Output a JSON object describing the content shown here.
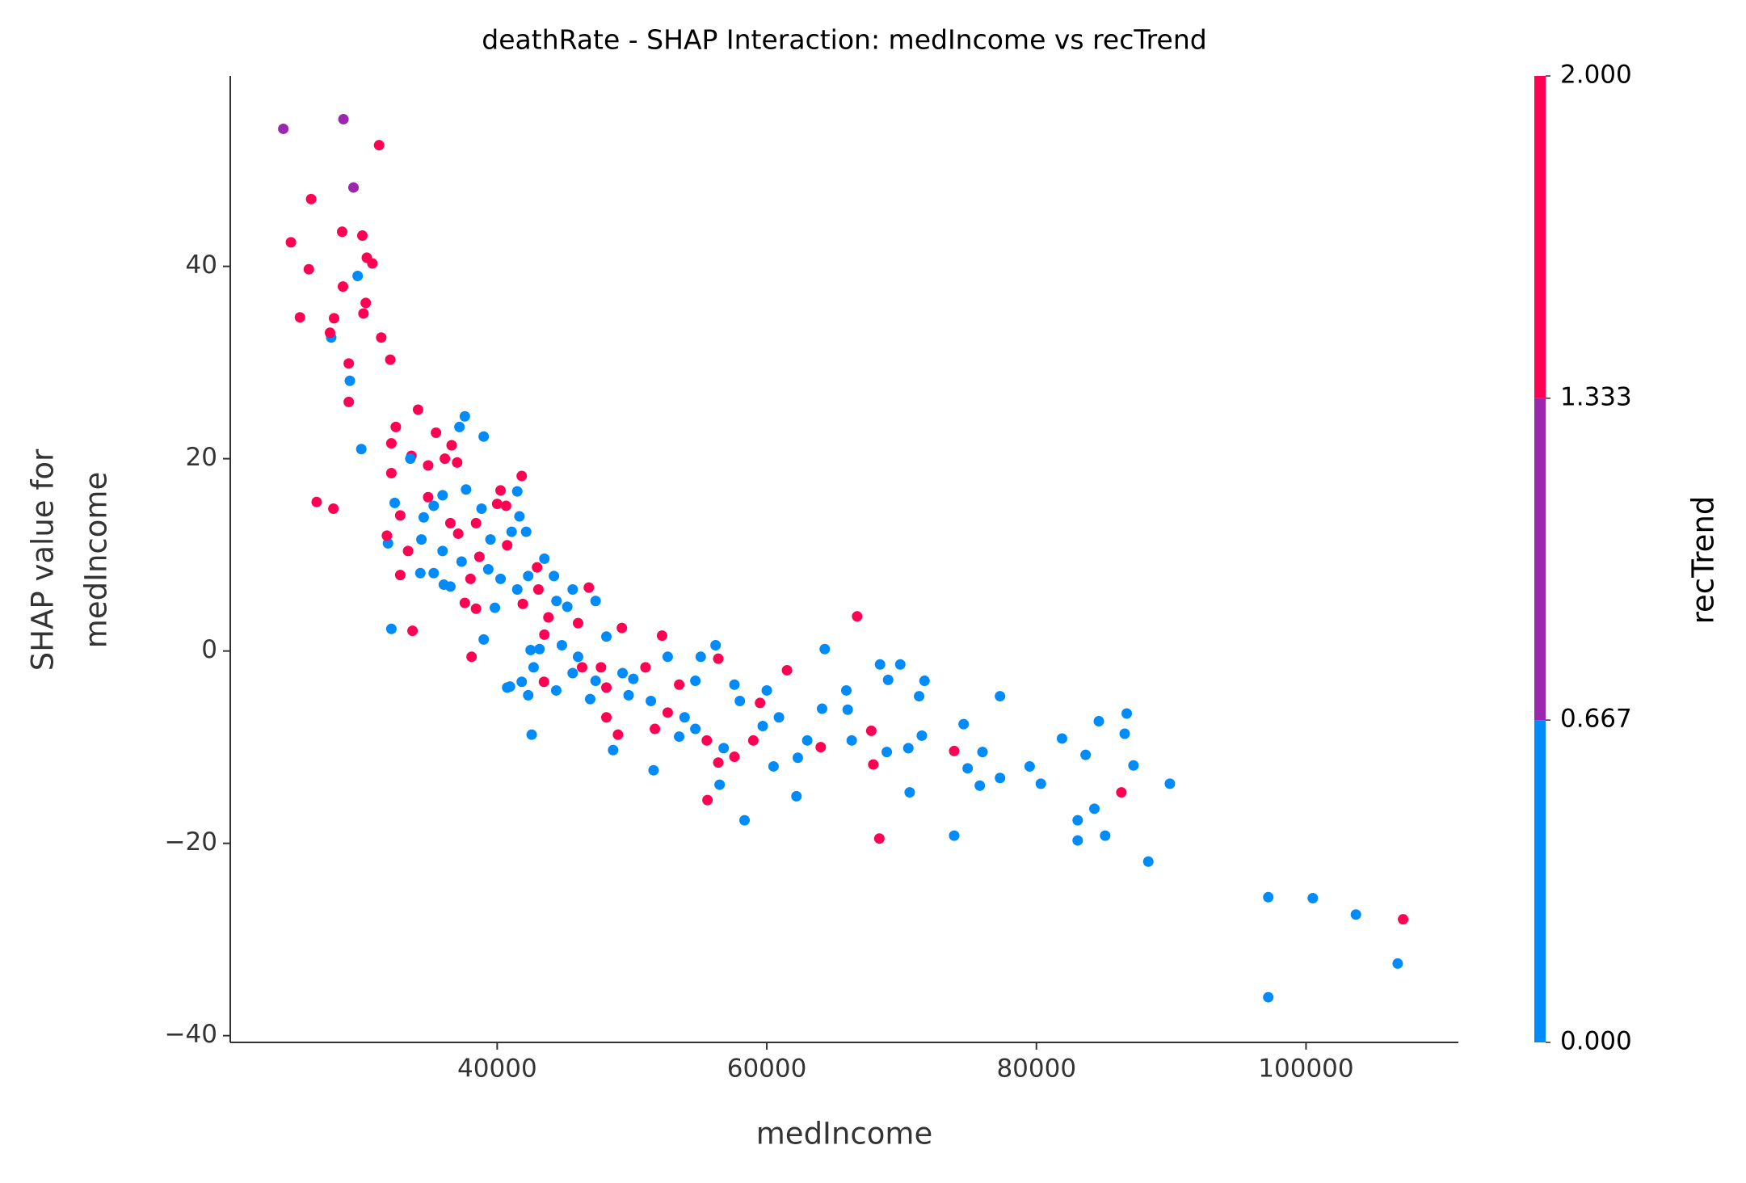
{
  "chart_data": {
    "type": "scatter",
    "title": "deathRate - SHAP Interaction: medIncome vs recTrend",
    "xlabel": "medIncome",
    "ylabel": [
      "SHAP value for",
      "medIncome"
    ],
    "xlim": [
      20200,
      111300
    ],
    "ylim": [
      -40.7,
      59.8
    ],
    "xticks": [
      40000,
      60000,
      80000,
      100000
    ],
    "yticks": [
      {
        "value": -40,
        "label": "−40"
      },
      {
        "value": -20,
        "label": "−20"
      },
      0,
      20,
      40
    ],
    "colorbar": {
      "label": "recTrend",
      "lim": [
        0,
        2
      ],
      "colors": [
        "#008bfb",
        "#9b27b0",
        "#ff0052"
      ],
      "ticks": [
        {
          "value": 0,
          "label": "0.000"
        },
        {
          "value": 0.667,
          "label": "0.667"
        },
        {
          "value": 1.333,
          "label": "1.333"
        },
        {
          "value": 2,
          "label": "2.000"
        }
      ]
    },
    "x": [
      24133,
      28596,
      29340,
      31240,
      24700,
      26200,
      26030,
      25370,
      27690,
      27600,
      27900,
      28500,
      28560,
      28990,
      28990,
      29070,
      29650,
      30000,
      30330,
      30740,
      30250,
      30080,
      31400,
      32070,
      29920,
      26610,
      27850,
      32150,
      33720,
      64300,
      66700,
      89900,
      88300,
      97200,
      100500,
      103700,
      107200,
      106800,
      97200,
      68350,
      73900,
      58350,
      55600,
      83060,
      85100,
      86300,
      83060,
      84300,
      84630,
      86700,
      86550,
      87200,
      80330,
      79500,
      81900,
      83650,
      77300,
      75800,
      74900,
      76000,
      73900,
      74600,
      77300,
      70500,
      70600,
      67900,
      67750,
      69900,
      71700,
      71300,
      68400,
      69000,
      71500,
      68900,
      66300,
      64000,
      62300,
      60500,
      62200,
      56500,
      59700,
      63000,
      65900,
      61500,
      64100,
      66000,
      59500,
      49250,
      52230,
      56200,
      56400,
      55100,
      52650,
      51000,
      49300,
      47700,
      46000,
      44800,
      43500,
      43140,
      42700,
      45600,
      48100,
      49750,
      51400,
      52650,
      53900,
      54700,
      55550,
      56800,
      57600,
      46900,
      48100,
      48960,
      48600,
      51600,
      53500,
      51700,
      42300,
      42560,
      40950,
      44380,
      46300,
      47300,
      50100,
      53500,
      54700,
      57600,
      58000,
      60000,
      60900,
      59000,
      56400,
      43800,
      45200,
      46800,
      45600,
      47300,
      48100,
      46000,
      44400,
      43060,
      37600,
      34130,
      39000,
      35460,
      36620,
      37200,
      32480,
      32150,
      33640,
      34880,
      36120,
      37030,
      32150,
      33560,
      41490,
      40250,
      41820,
      35950,
      37690,
      34880,
      32400,
      32810,
      38840,
      40000,
      40660,
      41650,
      42150,
      34550,
      35290,
      36530,
      37110,
      38430,
      39500,
      40740,
      41070,
      31900,
      31820,
      33390,
      34380,
      35950,
      37360,
      38680,
      39340,
      38020,
      36040,
      34300,
      32810,
      35290,
      36530,
      40250,
      41490,
      41900,
      37600,
      38430,
      39830,
      43500,
      44210,
      42960,
      42300,
      39000,
      38100,
      42480,
      40740,
      41820,
      43470
    ],
    "values": [
      54.3,
      55.3,
      48.2,
      52.6,
      42.5,
      47.0,
      39.7,
      34.7,
      32.6,
      33.1,
      34.6,
      43.6,
      37.9,
      29.9,
      25.9,
      28.1,
      39.0,
      43.2,
      40.9,
      40.3,
      36.2,
      35.1,
      32.6,
      30.3,
      21.0,
      15.5,
      14.8,
      2.3,
      2.1,
      0.2,
      3.6,
      -13.8,
      -21.9,
      -25.6,
      -25.7,
      -27.4,
      -27.9,
      -32.5,
      -36.0,
      -19.5,
      -19.2,
      -17.6,
      -15.5,
      -19.7,
      -19.2,
      -14.7,
      -17.6,
      -16.4,
      -7.3,
      -6.5,
      -8.6,
      -11.9,
      -13.8,
      -12.0,
      -9.1,
      -10.8,
      -13.2,
      -14.0,
      -12.2,
      -10.5,
      -10.4,
      -7.6,
      -4.7,
      -10.1,
      -14.7,
      -11.8,
      -8.3,
      -1.4,
      -3.1,
      -4.7,
      -1.4,
      -3.0,
      -8.8,
      -10.5,
      -9.3,
      -10.0,
      -11.1,
      -12.0,
      -15.1,
      -13.9,
      -7.8,
      -9.3,
      -4.1,
      -2.0,
      -6.0,
      -6.1,
      -5.4,
      2.4,
      1.6,
      0.6,
      -0.8,
      -0.6,
      -0.6,
      -1.7,
      -2.3,
      -1.7,
      -0.6,
      0.6,
      1.7,
      0.2,
      -1.7,
      -2.3,
      -3.8,
      -4.6,
      -5.2,
      -6.4,
      -6.9,
      -8.1,
      -9.3,
      -10.1,
      -11.0,
      -5.0,
      -6.9,
      -8.7,
      -10.3,
      -12.4,
      -8.9,
      -8.1,
      -4.6,
      -8.7,
      -3.7,
      -4.1,
      -1.7,
      -3.1,
      -2.9,
      -3.5,
      -3.1,
      -3.5,
      -5.2,
      -4.1,
      -6.9,
      -9.3,
      -11.6,
      3.5,
      4.6,
      6.6,
      6.4,
      5.2,
      1.5,
      2.9,
      5.2,
      6.4,
      24.4,
      25.1,
      22.3,
      22.7,
      21.4,
      23.3,
      23.3,
      21.6,
      20.3,
      19.3,
      20.0,
      19.6,
      18.5,
      20.0,
      16.6,
      16.7,
      18.2,
      16.2,
      16.8,
      16.0,
      15.4,
      14.1,
      14.8,
      15.3,
      15.1,
      14.0,
      12.4,
      13.9,
      15.1,
      13.3,
      12.2,
      13.3,
      11.6,
      11.0,
      12.4,
      11.2,
      12.0,
      10.4,
      11.6,
      10.4,
      9.3,
      9.8,
      8.5,
      7.5,
      6.9,
      8.1,
      7.9,
      8.1,
      6.7,
      7.5,
      6.4,
      4.9,
      5.0,
      4.4,
      4.5,
      9.6,
      7.8,
      8.7,
      7.8,
      1.2,
      -0.6,
      0.1,
      -3.8,
      -3.2,
      -3.2
    ],
    "color_values": [
      1,
      1,
      1,
      2,
      2,
      2,
      2,
      2,
      0,
      2,
      2,
      2,
      2,
      2,
      2,
      0,
      0,
      2,
      2,
      2,
      2,
      2,
      2,
      2,
      0,
      2,
      2,
      0,
      2,
      0,
      2,
      0,
      0,
      0,
      0,
      0,
      2,
      0,
      0,
      2,
      0,
      0,
      2,
      0,
      0,
      2,
      0,
      0,
      0,
      0,
      0,
      0,
      0,
      0,
      0,
      0,
      0,
      0,
      0,
      0,
      2,
      0,
      0,
      0,
      0,
      2,
      2,
      0,
      0,
      0,
      0,
      0,
      0,
      0,
      0,
      2,
      0,
      0,
      0,
      0,
      0,
      0,
      0,
      2,
      0,
      0,
      2,
      2,
      2,
      0,
      2,
      0,
      0,
      2,
      0,
      2,
      0,
      0,
      2,
      0,
      0,
      0,
      2,
      0,
      0,
      2,
      0,
      0,
      2,
      0,
      2,
      0,
      2,
      2,
      0,
      0,
      0,
      2,
      0,
      0,
      0,
      0,
      2,
      0,
      0,
      2,
      0,
      0,
      0,
      0,
      0,
      2,
      2,
      2,
      0,
      2,
      0,
      0,
      0,
      2,
      0,
      2,
      0,
      2,
      0,
      2,
      2,
      0,
      2,
      2,
      2,
      2,
      2,
      2,
      2,
      0,
      0,
      2,
      2,
      0,
      0,
      2,
      0,
      2,
      0,
      2,
      2,
      0,
      0,
      0,
      0,
      2,
      2,
      2,
      0,
      2,
      0,
      0,
      2,
      2,
      0,
      0,
      0,
      2,
      0,
      2,
      0,
      0,
      2,
      0,
      0,
      0,
      0,
      2,
      2,
      2,
      0,
      0,
      0,
      2,
      0,
      0,
      2,
      0,
      0,
      0,
      2
    ]
  }
}
